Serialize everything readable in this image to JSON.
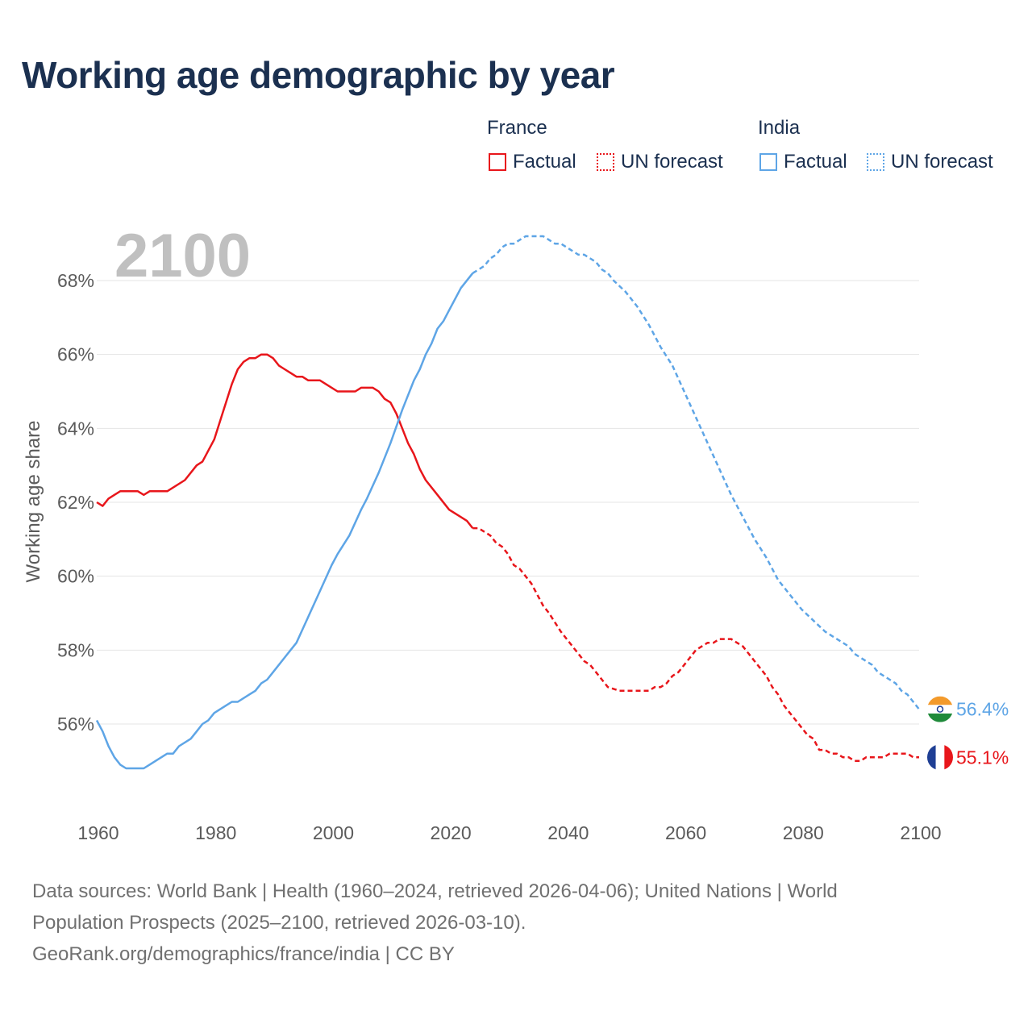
{
  "colors": {
    "france": "#e8161b",
    "india": "#5ea5e6",
    "title": "#1b3050",
    "grid": "#e4e4e4",
    "tick": "#5b5b5b",
    "big_year": "#c0c0c0"
  },
  "legend": {
    "groups": [
      {
        "name": "France",
        "factual": "Factual",
        "forecast": "UN forecast"
      },
      {
        "name": "India",
        "factual": "Factual",
        "forecast": "UN forecast"
      }
    ]
  },
  "footer": {
    "line1": "Data sources: World Bank | Health (1960–2024, retrieved 2026-04-06); United Nations | World",
    "line2": "Population Prospects (2025–2100, retrieved 2026-03-10).",
    "line3": "GeoRank.org/demographics/france/india | CC BY"
  },
  "icons": {
    "france_flag": "france-flag-icon",
    "india_flag": "india-flag-icon"
  },
  "chart_data": {
    "type": "line",
    "title": "Working age demographic by year",
    "ylabel": "Working age share",
    "xlabel": "",
    "current_year": "2100",
    "xlim": [
      1960,
      2100
    ],
    "ylim": [
      54,
      69.9
    ],
    "x_ticks": [
      1960,
      1980,
      2000,
      2020,
      2040,
      2060,
      2080,
      2100
    ],
    "y_ticks": [
      56,
      58,
      60,
      62,
      64,
      66,
      68
    ],
    "y_tick_labels": [
      "56%",
      "58%",
      "60%",
      "62%",
      "64%",
      "66%",
      "68%"
    ],
    "grid": true,
    "factual_end_year": 2024,
    "series": [
      {
        "name": "France",
        "color": "#e8161b",
        "end_label": "55.1%",
        "points": [
          [
            1960,
            62.0
          ],
          [
            1961,
            61.9
          ],
          [
            1962,
            62.1
          ],
          [
            1963,
            62.2
          ],
          [
            1964,
            62.3
          ],
          [
            1965,
            62.3
          ],
          [
            1966,
            62.3
          ],
          [
            1967,
            62.3
          ],
          [
            1968,
            62.2
          ],
          [
            1969,
            62.3
          ],
          [
            1970,
            62.3
          ],
          [
            1972,
            62.3
          ],
          [
            1975,
            62.6
          ],
          [
            1977,
            63.0
          ],
          [
            1978,
            63.1
          ],
          [
            1980,
            63.7
          ],
          [
            1982,
            64.7
          ],
          [
            1983,
            65.2
          ],
          [
            1984,
            65.6
          ],
          [
            1985,
            65.8
          ],
          [
            1986,
            65.9
          ],
          [
            1987,
            65.9
          ],
          [
            1988,
            66.0
          ],
          [
            1989,
            66.0
          ],
          [
            1990,
            65.9
          ],
          [
            1991,
            65.7
          ],
          [
            1992,
            65.6
          ],
          [
            1993,
            65.5
          ],
          [
            1994,
            65.4
          ],
          [
            1995,
            65.4
          ],
          [
            1996,
            65.3
          ],
          [
            1998,
            65.3
          ],
          [
            2000,
            65.1
          ],
          [
            2001,
            65.0
          ],
          [
            2004,
            65.0
          ],
          [
            2005,
            65.1
          ],
          [
            2007,
            65.1
          ],
          [
            2008,
            65.0
          ],
          [
            2009,
            64.8
          ],
          [
            2010,
            64.7
          ],
          [
            2011,
            64.4
          ],
          [
            2012,
            64.0
          ],
          [
            2013,
            63.6
          ],
          [
            2014,
            63.3
          ],
          [
            2015,
            62.9
          ],
          [
            2016,
            62.6
          ],
          [
            2018,
            62.2
          ],
          [
            2020,
            61.8
          ],
          [
            2022,
            61.6
          ],
          [
            2023,
            61.5
          ],
          [
            2024,
            61.3
          ],
          [
            2025,
            61.3
          ],
          [
            2026,
            61.2
          ],
          [
            2027,
            61.1
          ],
          [
            2028,
            60.9
          ],
          [
            2029,
            60.8
          ],
          [
            2030,
            60.6
          ],
          [
            2031,
            60.3
          ],
          [
            2032,
            60.2
          ],
          [
            2034,
            59.8
          ],
          [
            2036,
            59.2
          ],
          [
            2037,
            59.0
          ],
          [
            2039,
            58.5
          ],
          [
            2041,
            58.1
          ],
          [
            2043,
            57.7
          ],
          [
            2044,
            57.6
          ],
          [
            2045,
            57.4
          ],
          [
            2046,
            57.2
          ],
          [
            2047,
            57.0
          ],
          [
            2049,
            56.9
          ],
          [
            2054,
            56.9
          ],
          [
            2055,
            57.0
          ],
          [
            2056,
            57.0
          ],
          [
            2057,
            57.1
          ],
          [
            2058,
            57.3
          ],
          [
            2059,
            57.4
          ],
          [
            2060,
            57.6
          ],
          [
            2061,
            57.8
          ],
          [
            2062,
            58.0
          ],
          [
            2063,
            58.1
          ],
          [
            2064,
            58.2
          ],
          [
            2065,
            58.2
          ],
          [
            2066,
            58.3
          ],
          [
            2068,
            58.3
          ],
          [
            2069,
            58.2
          ],
          [
            2070,
            58.1
          ],
          [
            2071,
            57.9
          ],
          [
            2072,
            57.7
          ],
          [
            2073,
            57.5
          ],
          [
            2074,
            57.3
          ],
          [
            2075,
            57.0
          ],
          [
            2076,
            56.8
          ],
          [
            2077,
            56.5
          ],
          [
            2078,
            56.3
          ],
          [
            2079,
            56.1
          ],
          [
            2080,
            55.9
          ],
          [
            2081,
            55.7
          ],
          [
            2082,
            55.6
          ],
          [
            2083,
            55.3
          ],
          [
            2084,
            55.3
          ],
          [
            2085,
            55.2
          ],
          [
            2086,
            55.2
          ],
          [
            2087,
            55.1
          ],
          [
            2088,
            55.1
          ],
          [
            2089,
            55.0
          ],
          [
            2090,
            55.0
          ],
          [
            2091,
            55.1
          ],
          [
            2094,
            55.1
          ],
          [
            2095,
            55.2
          ],
          [
            2098,
            55.2
          ],
          [
            2099,
            55.1
          ],
          [
            2100,
            55.1
          ]
        ]
      },
      {
        "name": "India",
        "color": "#5ea5e6",
        "end_label": "56.4%",
        "points": [
          [
            1960,
            56.1
          ],
          [
            1961,
            55.8
          ],
          [
            1962,
            55.4
          ],
          [
            1963,
            55.1
          ],
          [
            1964,
            54.9
          ],
          [
            1965,
            54.8
          ],
          [
            1966,
            54.8
          ],
          [
            1967,
            54.8
          ],
          [
            1968,
            54.8
          ],
          [
            1969,
            54.9
          ],
          [
            1970,
            55.0
          ],
          [
            1972,
            55.2
          ],
          [
            1973,
            55.2
          ],
          [
            1974,
            55.4
          ],
          [
            1976,
            55.6
          ],
          [
            1977,
            55.8
          ],
          [
            1978,
            56.0
          ],
          [
            1979,
            56.1
          ],
          [
            1980,
            56.3
          ],
          [
            1982,
            56.5
          ],
          [
            1983,
            56.6
          ],
          [
            1984,
            56.6
          ],
          [
            1986,
            56.8
          ],
          [
            1987,
            56.9
          ],
          [
            1988,
            57.1
          ],
          [
            1989,
            57.2
          ],
          [
            1990,
            57.4
          ],
          [
            1992,
            57.8
          ],
          [
            1994,
            58.2
          ],
          [
            1996,
            58.9
          ],
          [
            1998,
            59.6
          ],
          [
            2000,
            60.3
          ],
          [
            2001,
            60.6
          ],
          [
            2003,
            61.1
          ],
          [
            2005,
            61.8
          ],
          [
            2006,
            62.1
          ],
          [
            2008,
            62.8
          ],
          [
            2010,
            63.6
          ],
          [
            2012,
            64.5
          ],
          [
            2014,
            65.3
          ],
          [
            2015,
            65.6
          ],
          [
            2016,
            66.0
          ],
          [
            2017,
            66.3
          ],
          [
            2018,
            66.7
          ],
          [
            2019,
            66.9
          ],
          [
            2020,
            67.2
          ],
          [
            2022,
            67.8
          ],
          [
            2024,
            68.2
          ],
          [
            2025,
            68.3
          ],
          [
            2026,
            68.4
          ],
          [
            2027,
            68.6
          ],
          [
            2028,
            68.7
          ],
          [
            2029,
            68.9
          ],
          [
            2030,
            69.0
          ],
          [
            2031,
            69.0
          ],
          [
            2032,
            69.1
          ],
          [
            2033,
            69.2
          ],
          [
            2036,
            69.2
          ],
          [
            2037,
            69.1
          ],
          [
            2038,
            69.0
          ],
          [
            2039,
            69.0
          ],
          [
            2040,
            68.9
          ],
          [
            2041,
            68.8
          ],
          [
            2042,
            68.7
          ],
          [
            2043,
            68.7
          ],
          [
            2044,
            68.6
          ],
          [
            2045,
            68.5
          ],
          [
            2046,
            68.3
          ],
          [
            2047,
            68.2
          ],
          [
            2048,
            68.0
          ],
          [
            2050,
            67.7
          ],
          [
            2052,
            67.3
          ],
          [
            2054,
            66.8
          ],
          [
            2056,
            66.2
          ],
          [
            2058,
            65.7
          ],
          [
            2060,
            65.0
          ],
          [
            2062,
            64.3
          ],
          [
            2064,
            63.6
          ],
          [
            2066,
            62.9
          ],
          [
            2068,
            62.2
          ],
          [
            2070,
            61.6
          ],
          [
            2072,
            61.0
          ],
          [
            2074,
            60.5
          ],
          [
            2076,
            59.9
          ],
          [
            2078,
            59.5
          ],
          [
            2080,
            59.1
          ],
          [
            2082,
            58.8
          ],
          [
            2084,
            58.5
          ],
          [
            2086,
            58.3
          ],
          [
            2088,
            58.1
          ],
          [
            2089,
            57.9
          ],
          [
            2090,
            57.8
          ],
          [
            2091,
            57.7
          ],
          [
            2092,
            57.6
          ],
          [
            2093,
            57.4
          ],
          [
            2094,
            57.3
          ],
          [
            2095,
            57.2
          ],
          [
            2096,
            57.1
          ],
          [
            2097,
            56.9
          ],
          [
            2098,
            56.8
          ],
          [
            2099,
            56.6
          ],
          [
            2100,
            56.4
          ]
        ]
      }
    ]
  }
}
